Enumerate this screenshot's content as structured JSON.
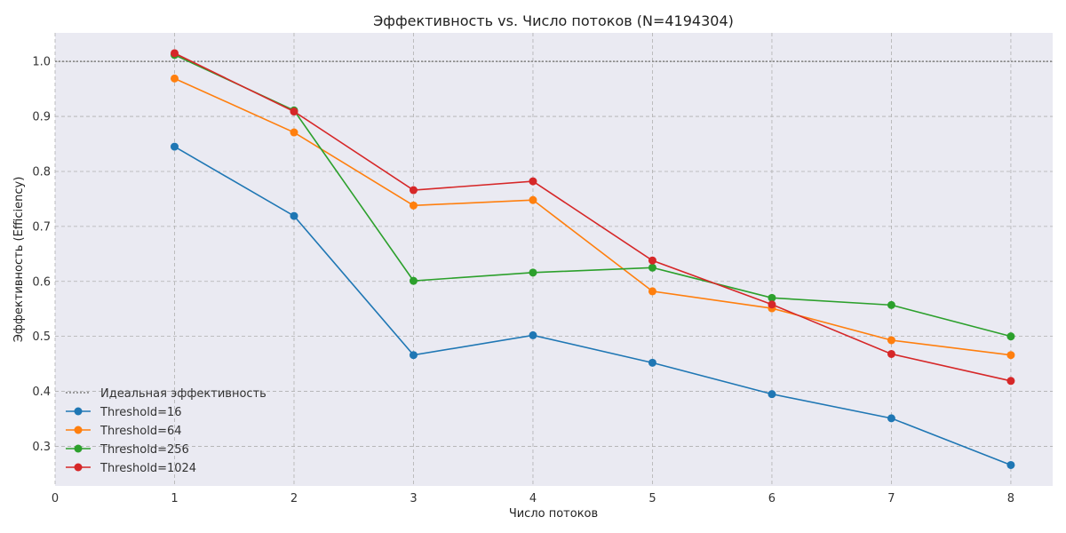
{
  "chart_data": {
    "type": "line",
    "title": "Эффективность vs. Число потоков (N=4194304)",
    "xlabel": "Число потоков",
    "ylabel": "Эффективность (Efficiency)",
    "xlim": [
      0,
      8.35
    ],
    "ylim": [
      0.228,
      1.052
    ],
    "xticks": [
      0,
      1,
      2,
      3,
      4,
      5,
      6,
      7,
      8
    ],
    "yticks": [
      0.3,
      0.4,
      0.5,
      0.6,
      0.7,
      0.8,
      0.9,
      1.0
    ],
    "ytick_labels": [
      "0.3",
      "0.4",
      "0.5",
      "0.6",
      "0.7",
      "0.8",
      "0.9",
      "1.0"
    ],
    "grid": true,
    "legend_position": "lower-left",
    "reference_line": {
      "name": "Идеальная эффективность",
      "y": 1.0,
      "color": "#808080"
    },
    "x": [
      1,
      2,
      3,
      4,
      5,
      6,
      7,
      8
    ],
    "series": [
      {
        "name": "Threshold=16",
        "color": "#1f77b4",
        "values": [
          0.845,
          0.719,
          0.466,
          0.502,
          0.452,
          0.395,
          0.351,
          0.266
        ]
      },
      {
        "name": "Threshold=64",
        "color": "#ff7f0e",
        "values": [
          0.969,
          0.871,
          0.738,
          0.748,
          0.582,
          0.551,
          0.493,
          0.466
        ]
      },
      {
        "name": "Threshold=256",
        "color": "#2ca02c",
        "values": [
          1.012,
          0.911,
          0.601,
          0.616,
          0.625,
          0.57,
          0.557,
          0.5
        ]
      },
      {
        "name": "Threshold=1024",
        "color": "#d62728",
        "values": [
          1.015,
          0.909,
          0.766,
          0.782,
          0.638,
          0.558,
          0.468,
          0.419
        ]
      }
    ]
  },
  "colors": {
    "plot_background": "#eaeaf2",
    "grid": "#b0b0b0"
  }
}
